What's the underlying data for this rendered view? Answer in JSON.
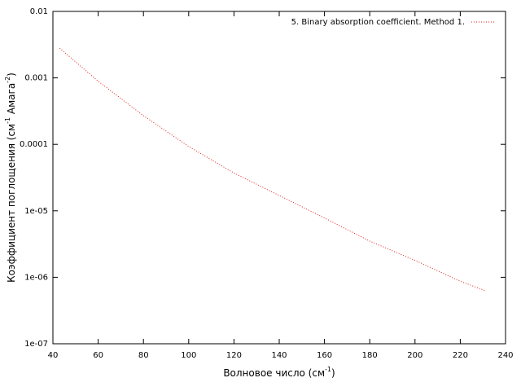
{
  "chart_data": {
    "type": "line",
    "xlabel": [
      "Волновое число (см",
      "-1",
      ")"
    ],
    "ylabel": [
      "Коэффициент поглощения (см",
      "-1",
      " Амага",
      "-2",
      ")"
    ],
    "x": [
      43,
      60,
      80,
      100,
      120,
      140,
      160,
      180,
      200,
      220,
      231
    ],
    "series": [
      {
        "name": "5. Binary absorption coefficient. Method 1.",
        "color": "#e02020",
        "values": [
          0.0028,
          0.00089,
          0.00027,
          9.3e-05,
          3.7e-05,
          1.7e-05,
          7.8e-06,
          3.5e-06,
          1.8e-06,
          8.7e-07,
          6.3e-07
        ]
      }
    ],
    "xlim": [
      40,
      240
    ],
    "xticks": [
      40,
      60,
      80,
      100,
      120,
      140,
      160,
      180,
      200,
      220,
      240
    ],
    "ylim": [
      1e-07,
      0.01
    ],
    "ylog": true,
    "yticks": [
      {
        "value": 1e-07,
        "label": "1e-07"
      },
      {
        "value": 1e-06,
        "label": "1e-06"
      },
      {
        "value": 1e-05,
        "label": "1e-05"
      },
      0.0001,
      0.001,
      0.01
    ],
    "legend": "top-right"
  }
}
